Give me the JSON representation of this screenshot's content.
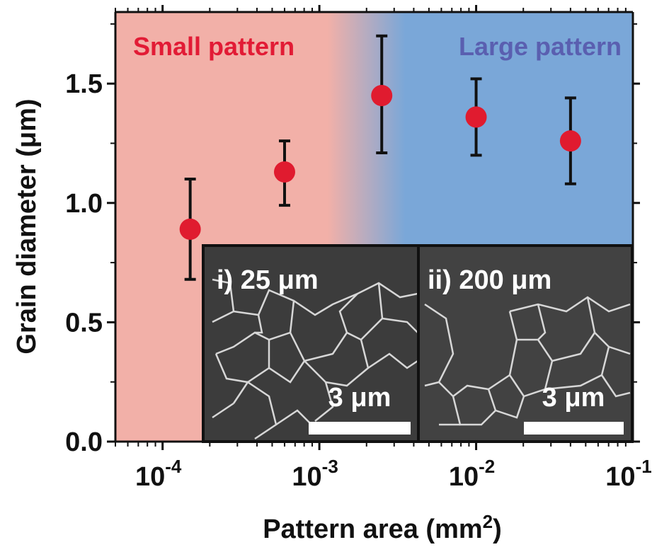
{
  "chart_data": {
    "type": "scatter",
    "xlabel": "Pattern area (mm",
    "xlabel_superscript": "2",
    "xlabel_suffix": ")",
    "ylabel": "Grain diameter (μm)",
    "x_scale": "log",
    "xlim": [
      5e-05,
      0.1
    ],
    "ylim": [
      0,
      1.8
    ],
    "x_ticks": [
      {
        "base": "10",
        "exp": "-4",
        "value": 0.0001
      },
      {
        "base": "10",
        "exp": "-3",
        "value": 0.001
      },
      {
        "base": "10",
        "exp": "-2",
        "value": 0.01
      },
      {
        "base": "10",
        "exp": "-1",
        "value": 0.1
      }
    ],
    "y_ticks": [
      {
        "label": "0.0",
        "value": 0.0
      },
      {
        "label": "0.5",
        "value": 0.5
      },
      {
        "label": "1.0",
        "value": 1.0
      },
      {
        "label": "1.5",
        "value": 1.5
      }
    ],
    "points": [
      {
        "x": 0.00015,
        "y": 0.89,
        "err_low": 0.68,
        "err_high": 1.1
      },
      {
        "x": 0.0006,
        "y": 1.13,
        "err_low": 0.99,
        "err_high": 1.26
      },
      {
        "x": 0.0025,
        "y": 1.45,
        "err_low": 1.21,
        "err_high": 1.7
      },
      {
        "x": 0.01,
        "y": 1.36,
        "err_low": 1.2,
        "err_high": 1.52
      },
      {
        "x": 0.04,
        "y": 1.26,
        "err_low": 1.08,
        "err_high": 1.44
      }
    ],
    "regions": [
      {
        "label": "Small pattern",
        "color": "#f2b0a8",
        "text_color": "#e21b35"
      },
      {
        "label": "Large pattern",
        "color": "#7aa7d8",
        "text_color": "#5a5fb0"
      }
    ],
    "marker_color": "#e01b2f",
    "insets": [
      {
        "label": "i) 25 μm",
        "scale_label": "3 μm"
      },
      {
        "label": "ii) 200 μm",
        "scale_label": "3 μm"
      }
    ],
    "grid": false
  }
}
